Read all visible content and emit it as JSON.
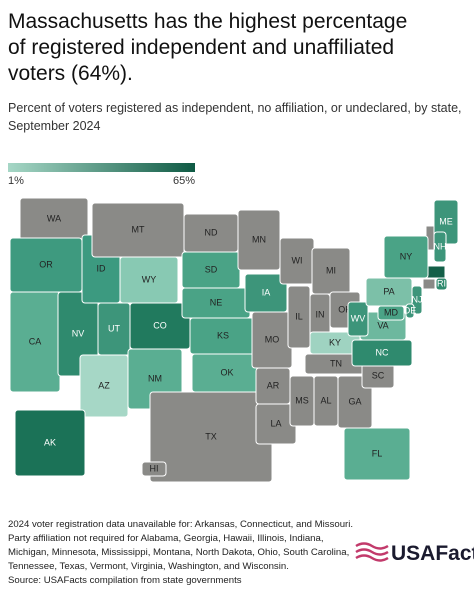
{
  "header": {
    "title": [
      "Massachusetts has the highest percentage",
      "of registered independent and unaffiliated",
      "voters (64%)."
    ],
    "subtitle": [
      "Percent of voters registered as independent, no affiliation, or undeclared, by state,",
      "September 2024"
    ]
  },
  "legend": {
    "min_label": "1%",
    "max_label": "65%",
    "min_color": "#a6d7c6",
    "max_color": "#0f5a44"
  },
  "map": {
    "no_data_color": "#8a8a87",
    "states": [
      {
        "label": "WA",
        "color": "#8a8a87"
      },
      {
        "label": "OR",
        "color": "#3e9a7f"
      },
      {
        "label": "CA",
        "color": "#5aae92"
      },
      {
        "label": "NV",
        "color": "#2f8a6e"
      },
      {
        "label": "ID",
        "color": "#3c9a80"
      },
      {
        "label": "MT",
        "color": "#8a8a87"
      },
      {
        "label": "WY",
        "color": "#88c9b3"
      },
      {
        "label": "UT",
        "color": "#3d957a"
      },
      {
        "label": "AZ",
        "color": "#a6d7c6"
      },
      {
        "label": "CO",
        "color": "#217a5e"
      },
      {
        "label": "NM",
        "color": "#5aae92"
      },
      {
        "label": "ND",
        "color": "#8a8a87"
      },
      {
        "label": "SD",
        "color": "#4aa386"
      },
      {
        "label": "NE",
        "color": "#4aa386"
      },
      {
        "label": "KS",
        "color": "#4aa386"
      },
      {
        "label": "OK",
        "color": "#5aae92"
      },
      {
        "label": "TX",
        "color": "#8a8a87"
      },
      {
        "label": "MN",
        "color": "#8a8a87"
      },
      {
        "label": "IA",
        "color": "#3d957a"
      },
      {
        "label": "MO",
        "color": "#8a8a87"
      },
      {
        "label": "AR",
        "color": "#8a8a87"
      },
      {
        "label": "LA",
        "color": "#8a8a87"
      },
      {
        "label": "WI",
        "color": "#8a8a87"
      },
      {
        "label": "IL",
        "color": "#8a8a87"
      },
      {
        "label": "MI",
        "color": "#8a8a87"
      },
      {
        "label": "IN",
        "color": "#8a8a87"
      },
      {
        "label": "OH",
        "color": "#8a8a87"
      },
      {
        "label": "KY",
        "color": "#9fd3c1"
      },
      {
        "label": "TN",
        "color": "#8a8a87"
      },
      {
        "label": "MS",
        "color": "#8a8a87"
      },
      {
        "label": "AL",
        "color": "#8a8a87"
      },
      {
        "label": "GA",
        "color": "#8a8a87"
      },
      {
        "label": "FL",
        "color": "#5aae92"
      },
      {
        "label": "SC",
        "color": "#8a8a87"
      },
      {
        "label": "NC",
        "color": "#2f8a6e"
      },
      {
        "label": "VA",
        "color": "#6db89e"
      },
      {
        "label": "WV",
        "color": "#3d957a"
      },
      {
        "label": "PA",
        "color": "#7cc0a8"
      },
      {
        "label": "NY",
        "color": "#4aa386"
      },
      {
        "label": "ME",
        "color": "#3d957a"
      },
      {
        "label": "NH",
        "color": "#3d957a"
      },
      {
        "label": "RI",
        "color": "#2f8a6e"
      },
      {
        "label": "NJ",
        "color": "#3d957a"
      },
      {
        "label": "MD",
        "color": "#4aa386"
      },
      {
        "label": "DE",
        "color": "#3d957a"
      },
      {
        "label": "AK",
        "color": "#1b7257"
      },
      {
        "label": "HI",
        "color": "#8a8a87"
      }
    ]
  },
  "notes": [
    "2024 voter registration data unavailable for: Arkansas, Connecticut, and Missouri.",
    "Party affiliation not required for Alabama, Georgia, Hawaii, Illinois, Indiana,",
    "Michigan, Minnesota, Mississippi, Montana, North Dakota, Ohio, South Carolina,",
    "Tennessee, Texas, Vermont, Virginia, Washington, and Wisconsin.",
    "Source: USAFacts compilation from state governments"
  ],
  "logo": "USAFacts"
}
